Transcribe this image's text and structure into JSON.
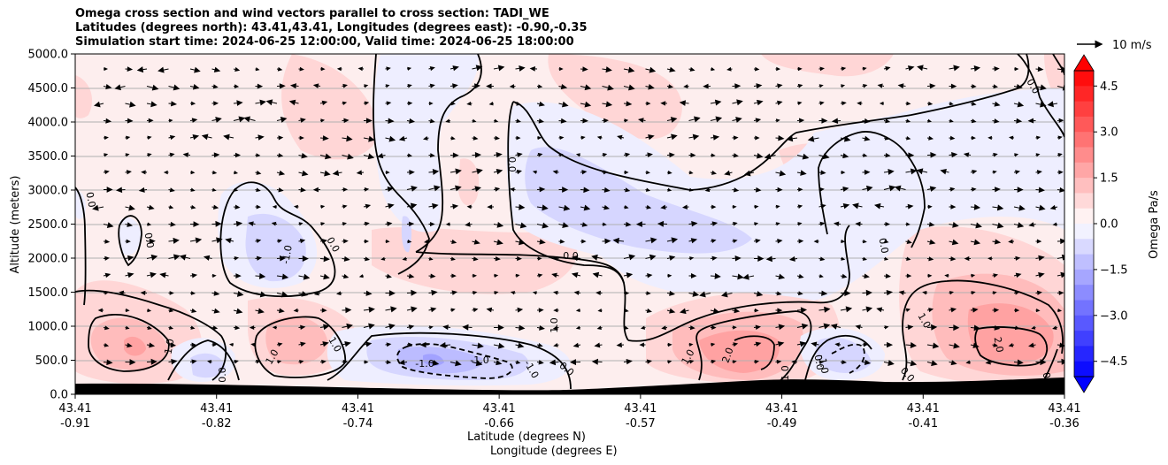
{
  "chart_data": {
    "type": "heatmap",
    "title_lines": [
      "Omega cross section and wind vectors parallel to cross section: TADI_WE",
      "Latitudes (degrees north): 43.41,43.41, Longitudes (degrees east): -0.90,-0.35",
      "Simulation start time: 2024-06-25 12:00:00, Valid time: 2024-06-25 18:00:00"
    ],
    "ylabel": "Altitude (meters)",
    "xlabel_lat": "Latitude (degrees N)",
    "xlabel_lon": "Longitude (degrees E)",
    "ylim": [
      0,
      5000
    ],
    "y_ticks": [
      "0.0",
      "500.0",
      "1000.0",
      "1500.0",
      "2000.0",
      "2500.0",
      "3000.0",
      "3500.0",
      "4000.0",
      "4500.0",
      "5000.0"
    ],
    "x_ticks": [
      {
        "lat": "43.41",
        "lon": "-0.91"
      },
      {
        "lat": "43.41",
        "lon": "-0.82"
      },
      {
        "lat": "43.41",
        "lon": "-0.74"
      },
      {
        "lat": "43.41",
        "lon": "-0.66"
      },
      {
        "lat": "43.41",
        "lon": "-0.57"
      },
      {
        "lat": "43.41",
        "lon": "-0.49"
      },
      {
        "lat": "43.41",
        "lon": "-0.41"
      },
      {
        "lat": "43.41",
        "lon": "-0.36"
      }
    ],
    "grid": "horizontal",
    "colorbar": {
      "label": "Omega Pa/s",
      "ticks": [
        "4.5",
        "3.0",
        "1.5",
        "0.0",
        "−1.5",
        "−3.0",
        "−4.5"
      ],
      "tick_values": [
        4.5,
        3.0,
        1.5,
        0.0,
        -1.5,
        -3.0,
        -4.5
      ],
      "range": [
        -5,
        5
      ],
      "colormap": "bwr",
      "extend": "both"
    },
    "quiver_key": "10 m/s",
    "contour_labels": [
      {
        "text": "0.0"
      },
      {
        "text": "0.0"
      },
      {
        "text": "0.0"
      },
      {
        "text": "0.0"
      },
      {
        "text": "0.0"
      },
      {
        "text": "0.0"
      },
      {
        "text": "0.0"
      },
      {
        "text": "0.0"
      },
      {
        "text": "0.0"
      },
      {
        "text": "0.0"
      },
      {
        "text": "0.0"
      },
      {
        "text": "0.0"
      },
      {
        "text": "1.0"
      },
      {
        "text": "1.0"
      },
      {
        "text": "1.0"
      },
      {
        "text": "1.0"
      },
      {
        "text": "1.0"
      },
      {
        "text": "1.0"
      },
      {
        "text": "1.0"
      },
      {
        "text": "2.0"
      },
      {
        "text": "2.0"
      },
      {
        "text": "-1.0"
      },
      {
        "text": "-1.0"
      },
      {
        "text": "-1.0"
      },
      {
        "text": "-1.0"
      },
      {
        "text": "-1.0"
      }
    ]
  }
}
